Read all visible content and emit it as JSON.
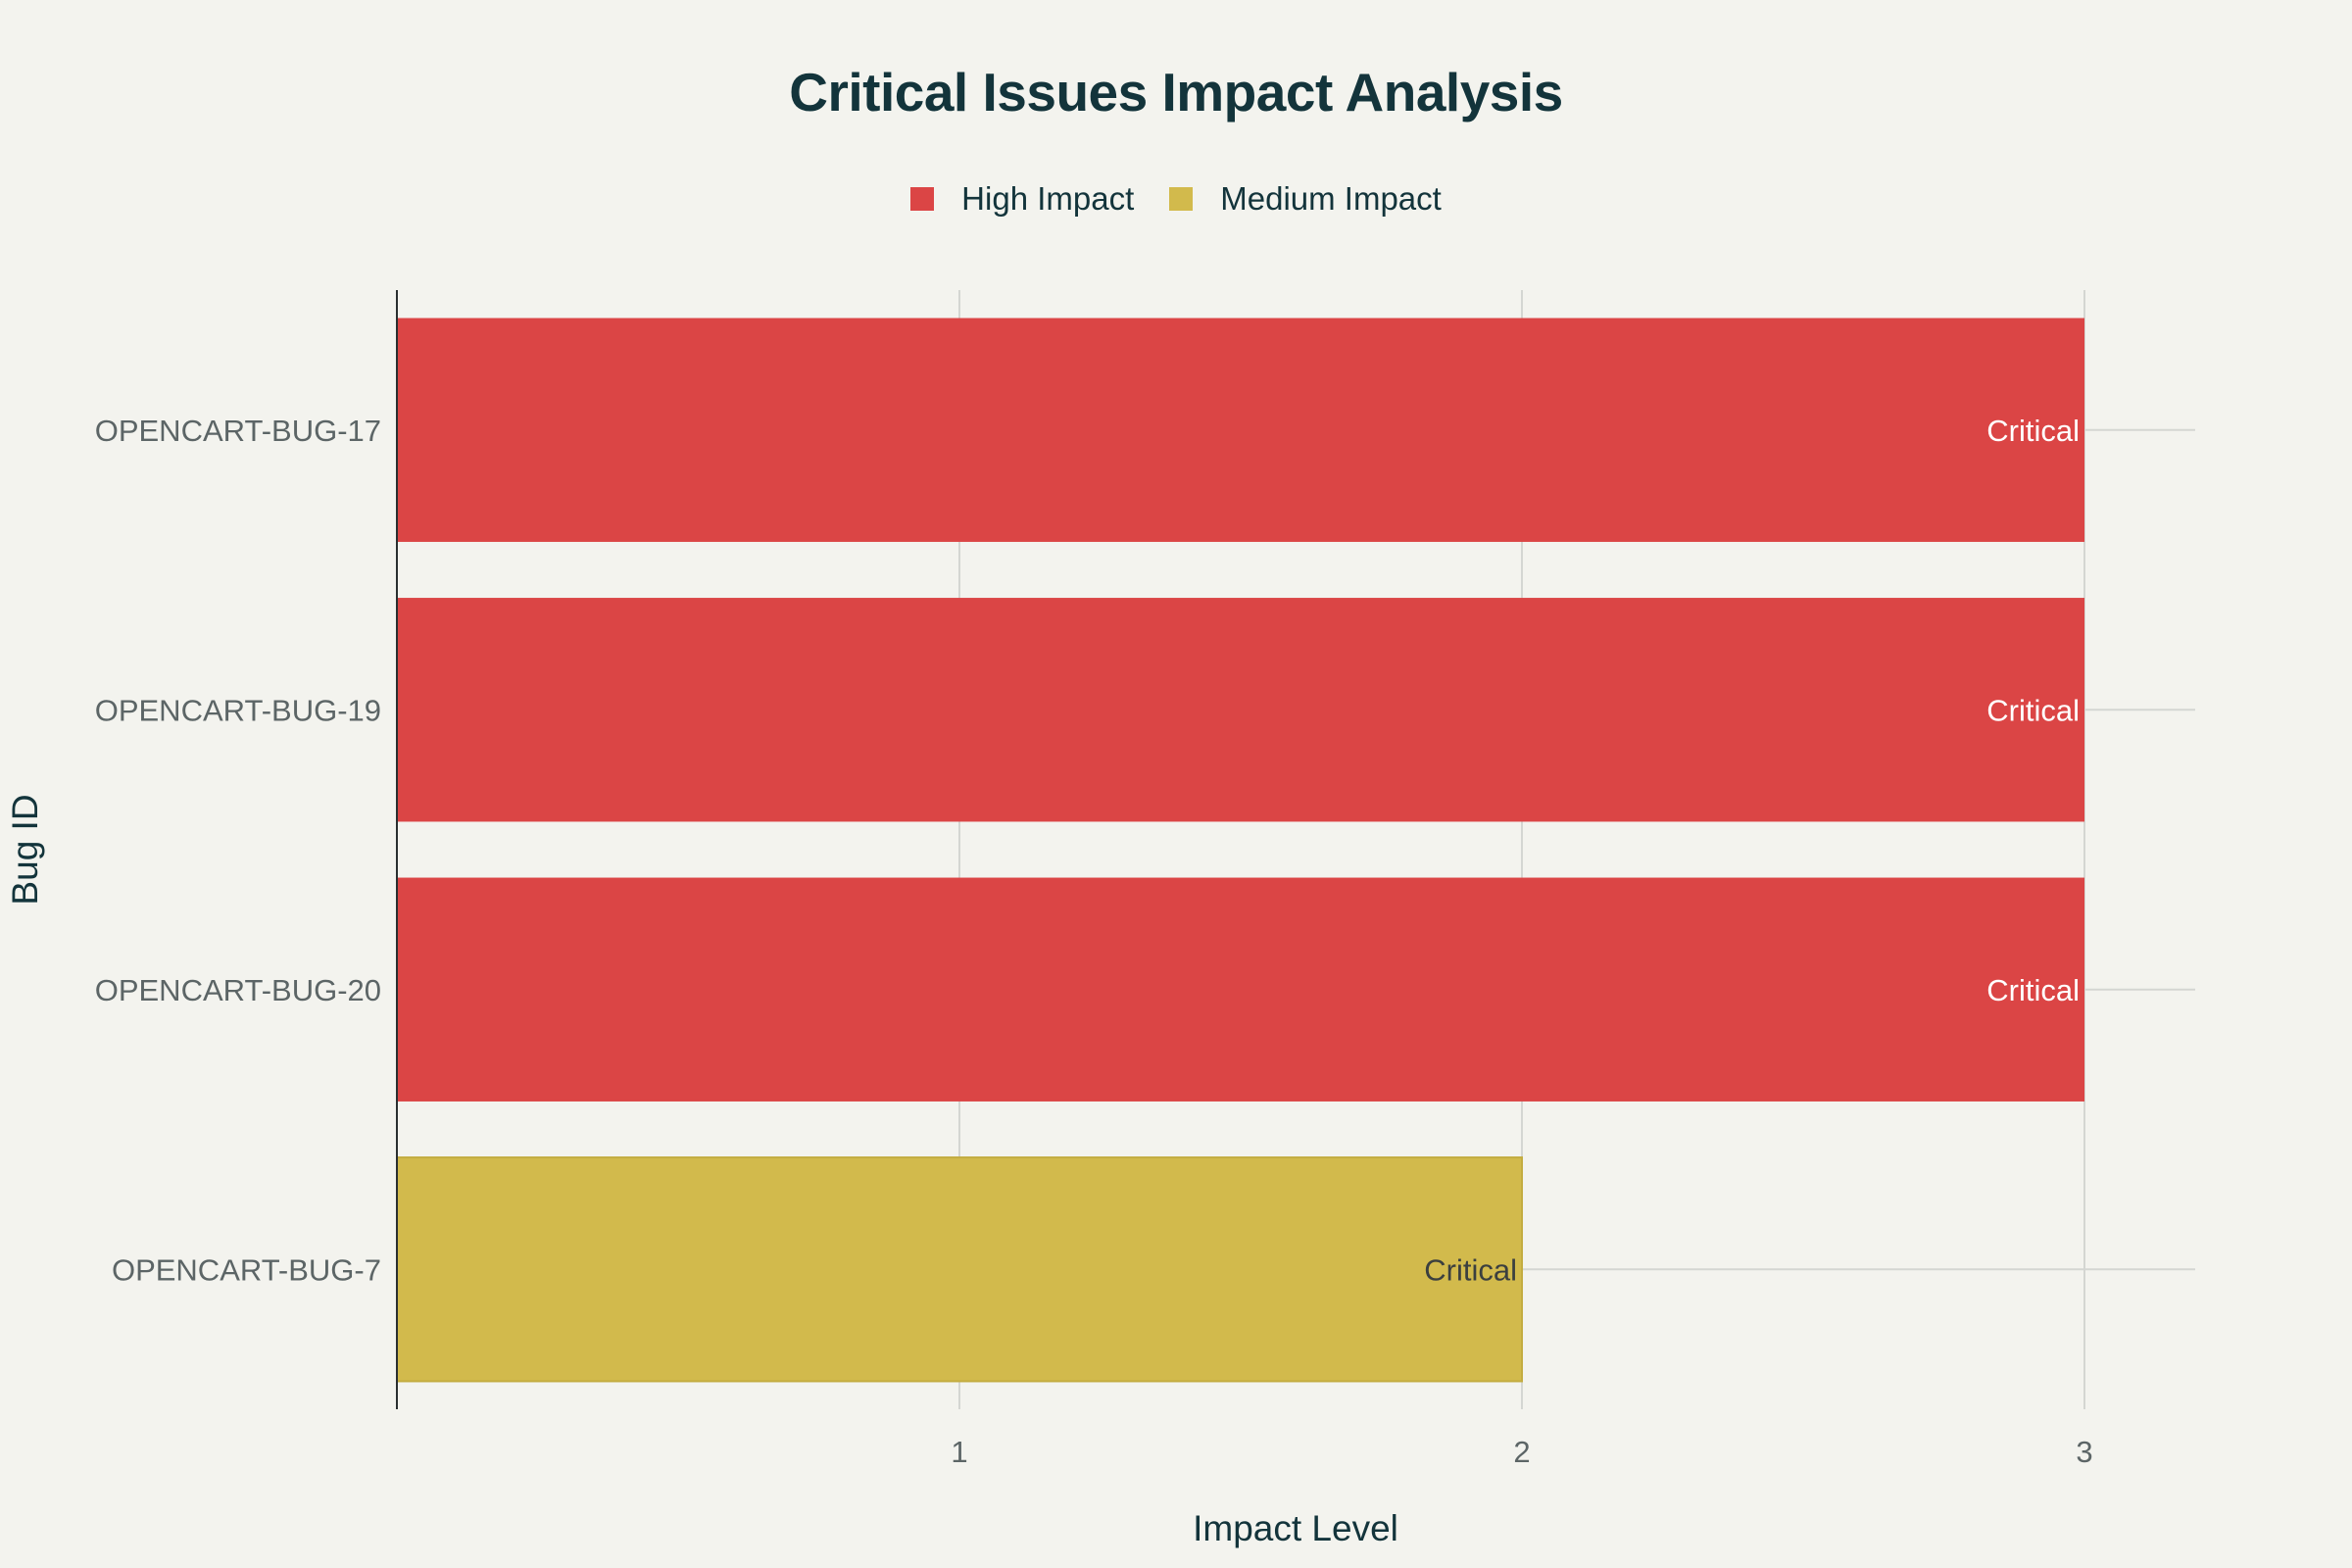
{
  "chart_data": {
    "type": "bar",
    "orientation": "horizontal",
    "title": "Critical Issues Impact Analysis",
    "xlabel": "Impact Level",
    "ylabel": "Bug ID",
    "xlim": [
      0,
      3.2
    ],
    "xticks": [
      "1",
      "2",
      "3"
    ],
    "grid": true,
    "legend_position": "top-center",
    "legend": [
      {
        "name": "High Impact",
        "color": "#db4545"
      },
      {
        "name": "Medium Impact",
        "color": "#d2ba4c"
      }
    ],
    "bars": [
      {
        "category": "OPENCART-BUG-17",
        "value": 3,
        "label": "Critical",
        "series": "High Impact"
      },
      {
        "category": "OPENCART-BUG-19",
        "value": 3,
        "label": "Critical",
        "series": "High Impact"
      },
      {
        "category": "OPENCART-BUG-20",
        "value": 3,
        "label": "Critical",
        "series": "High Impact"
      },
      {
        "category": "OPENCART-BUG-7",
        "value": 2,
        "label": "Critical",
        "series": "Medium Impact"
      }
    ]
  }
}
